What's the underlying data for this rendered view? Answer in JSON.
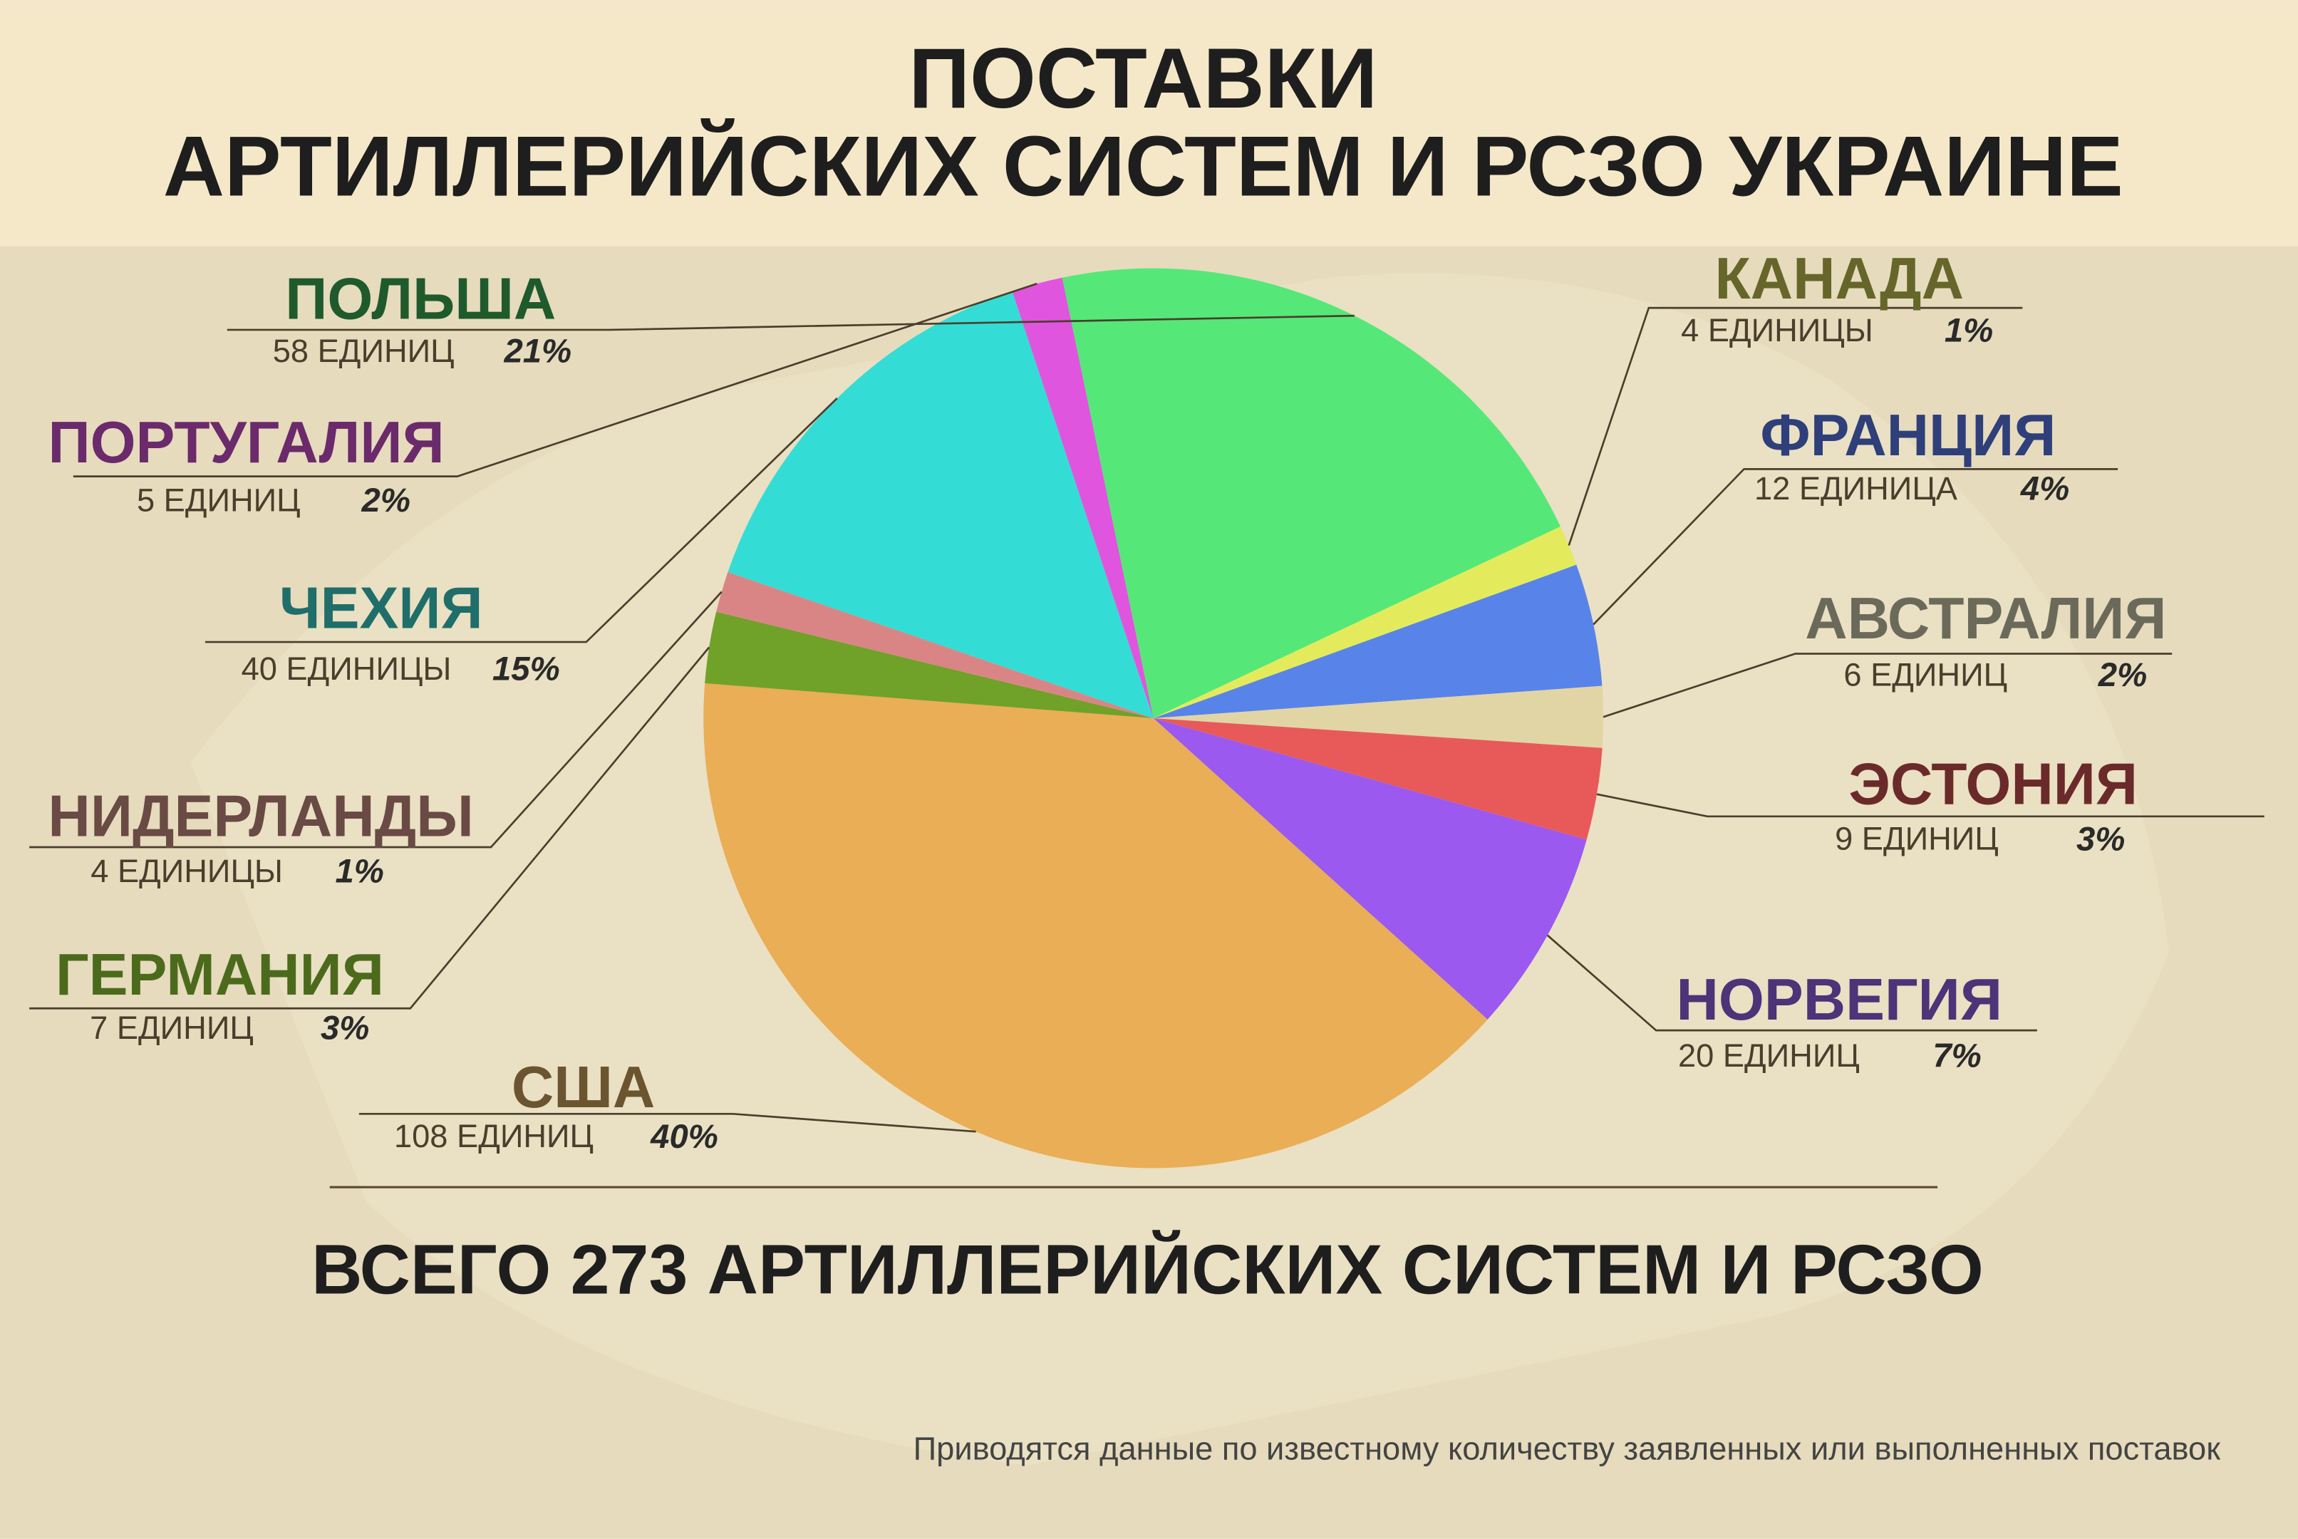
{
  "chart_data": {
    "type": "pie",
    "title_lines": [
      "ПОСТАВКИ",
      "АРТИЛЛЕРИЙСКИХ СИСТЕМ И РСЗО УКРАИНЕ"
    ],
    "categories": [
      "ПОЛЬША",
      "КАНАДА",
      "ФРАНЦИЯ",
      "АВСТРАЛИЯ",
      "ЭСТОНИЯ",
      "НОРВЕГИЯ",
      "США",
      "ГЕРМАНИЯ",
      "НИДЕРЛАНДЫ",
      "ЧЕХИЯ",
      "ПОРТУГАЛИЯ"
    ],
    "values": [
      58,
      4,
      12,
      6,
      9,
      20,
      108,
      7,
      4,
      40,
      5
    ],
    "value_labels": [
      "58 ЕДИНИЦ",
      "4 ЕДИНИЦЫ",
      "12 ЕДИНИЦА",
      "6 ЕДИНИЦ",
      "9 ЕДИНИЦ",
      "20 ЕДИНИЦ",
      "108 ЕДИНИЦ",
      "7 ЕДИНИЦ",
      "4 ЕДИНИЦЫ",
      "40 ЕДИНИЦЫ",
      "5 ЕДИНИЦ"
    ],
    "shares": [
      21,
      1,
      4,
      2,
      3,
      7,
      40,
      3,
      1,
      15,
      2
    ],
    "share_labels": [
      "21%",
      "1%",
      "4%",
      "2%",
      "3%",
      "7%",
      "40%",
      "3%",
      "1%",
      "15%",
      "2%"
    ],
    "colors": [
      "#55e878",
      "#e3eb5c",
      "#5884ea",
      "#e2d5a5",
      "#e85a5a",
      "#9b59ef",
      "#e9ae56",
      "#70a128",
      "#d98585",
      "#33ddd5",
      "#e055dd"
    ],
    "label_colors": [
      "#1f5a2c",
      "#66662a",
      "#2e3f7a",
      "#6b6a5a",
      "#6a2a2a",
      "#4d3378",
      "#6b5430",
      "#4c6a1c",
      "#6a4a44",
      "#1f6e6a",
      "#6b2a6b"
    ],
    "total_text": "ВСЕГО 273 АРТИЛЛЕРИЙСКИХ СИСТЕМ И РСЗО",
    "note": "Приводятся данные по известному количеству заявленных или выполненных поставок"
  }
}
